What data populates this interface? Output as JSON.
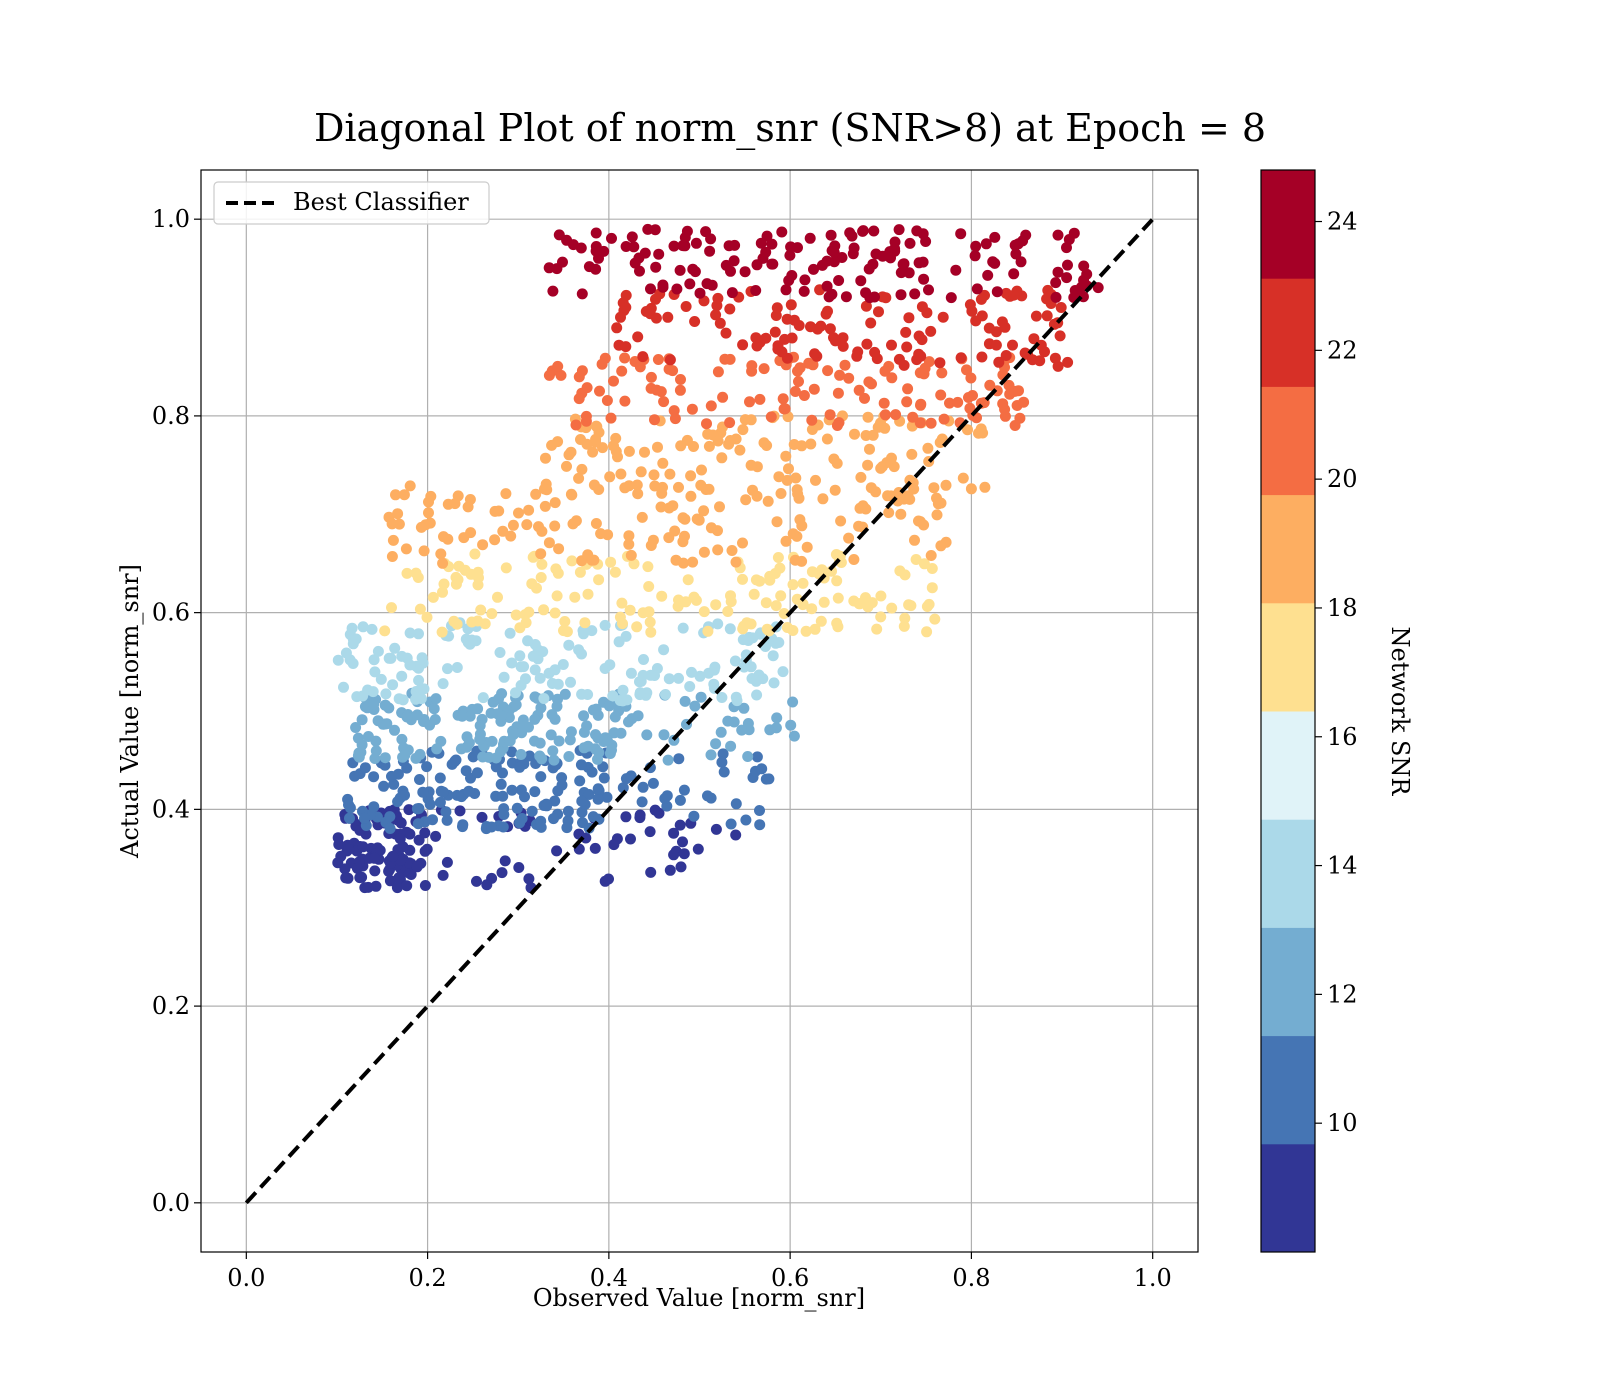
{
  "chart_data": {
    "type": "scatter",
    "title": "Diagonal Plot of norm_snr (SNR>8) at Epoch = 8",
    "xlabel": "Observed Value [norm_snr]",
    "ylabel": "Actual Value [norm_snr]",
    "xlim": [
      -0.05,
      1.05
    ],
    "ylim": [
      -0.05,
      1.05
    ],
    "xticks": [
      "0.0",
      "0.2",
      "0.4",
      "0.6",
      "0.8",
      "1.0"
    ],
    "yticks": [
      "0.0",
      "0.2",
      "0.4",
      "0.6",
      "0.8",
      "1.0"
    ],
    "grid": true,
    "legend": {
      "placement": "upper-left",
      "entries": [
        "Best Classifier"
      ]
    },
    "reference_line": {
      "name": "Best Classifier",
      "x": [
        0,
        1
      ],
      "y": [
        0,
        1
      ],
      "style": "dashed",
      "color": "#000000"
    },
    "colorbar": {
      "label": "Network SNR",
      "range": [
        8,
        24.8
      ],
      "ticks": [
        "10",
        "12",
        "14",
        "16",
        "18",
        "20",
        "22",
        "24"
      ],
      "colors": [
        "#313695",
        "#4575b4",
        "#74add1",
        "#abd9e9",
        "#e0f3f8",
        "#fee090",
        "#fdae61",
        "#f46d43",
        "#d73027",
        "#a50026"
      ]
    },
    "point_clusters": [
      {
        "snr": 8.5,
        "x_range": [
          0.1,
          0.2
        ],
        "y_range": [
          0.32,
          0.4
        ],
        "count": 110
      },
      {
        "snr": 8.5,
        "x_range": [
          0.2,
          0.55
        ],
        "y_range": [
          0.32,
          0.4
        ],
        "count": 50
      },
      {
        "snr": 10.5,
        "x_range": [
          0.11,
          0.4
        ],
        "y_range": [
          0.38,
          0.46
        ],
        "count": 140
      },
      {
        "snr": 10.5,
        "x_range": [
          0.4,
          0.58
        ],
        "y_range": [
          0.38,
          0.46
        ],
        "count": 30
      },
      {
        "snr": 12.5,
        "x_range": [
          0.12,
          0.42
        ],
        "y_range": [
          0.45,
          0.52
        ],
        "count": 150
      },
      {
        "snr": 12.5,
        "x_range": [
          0.42,
          0.62
        ],
        "y_range": [
          0.45,
          0.52
        ],
        "count": 30
      },
      {
        "snr": 14.5,
        "x_range": [
          0.1,
          0.6
        ],
        "y_range": [
          0.51,
          0.59
        ],
        "count": 160
      },
      {
        "snr": 16.5,
        "x_range": [
          0.15,
          0.76
        ],
        "y_range": [
          0.58,
          0.66
        ],
        "count": 160
      },
      {
        "snr": 18.5,
        "x_range": [
          0.15,
          0.78
        ],
        "y_range": [
          0.65,
          0.73
        ],
        "count": 140
      },
      {
        "snr": 19.5,
        "x_range": [
          0.33,
          0.82
        ],
        "y_range": [
          0.72,
          0.8
        ],
        "count": 130
      },
      {
        "snr": 21.0,
        "x_range": [
          0.33,
          0.86
        ],
        "y_range": [
          0.79,
          0.86
        ],
        "count": 130
      },
      {
        "snr": 22.5,
        "x_range": [
          0.4,
          0.91
        ],
        "y_range": [
          0.85,
          0.93
        ],
        "count": 130
      },
      {
        "snr": 24.0,
        "x_range": [
          0.33,
          0.94
        ],
        "y_range": [
          0.92,
          0.99
        ],
        "count": 160
      }
    ]
  }
}
